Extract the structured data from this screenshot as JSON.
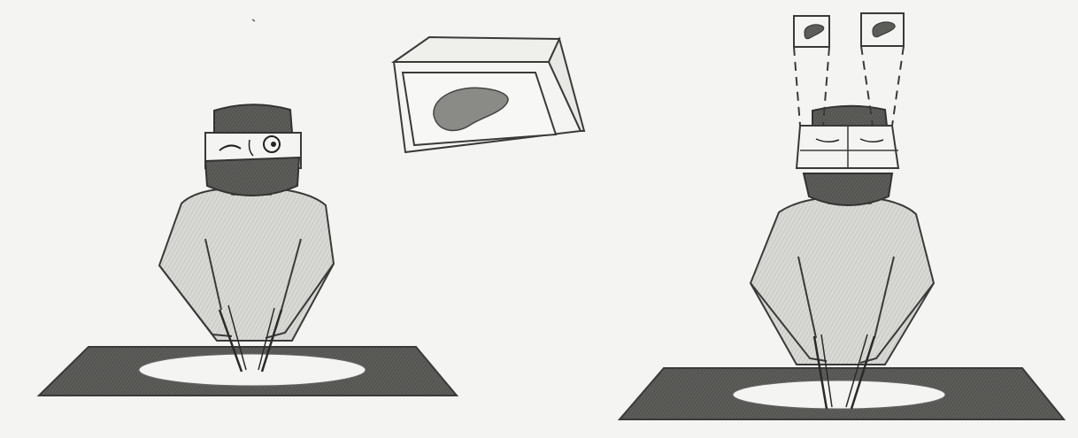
{
  "image": {
    "style": "pencil sketch",
    "colors": {
      "paper": "#f4f4f2",
      "pencil_dark": "#3a3a3a",
      "gown_shade": "#cfcfcb",
      "table_shade": "#6d6d6a",
      "organ_shade": "#7a7a76"
    }
  },
  "panels": [
    {
      "name": "left-panel",
      "elements": [
        "surgeon",
        "operating-table",
        "external-monitor",
        "organ-image"
      ]
    },
    {
      "name": "right-panel",
      "elements": [
        "surgeon",
        "head-mounted-display",
        "operating-table",
        "display-screens",
        "organ-image"
      ]
    }
  ]
}
